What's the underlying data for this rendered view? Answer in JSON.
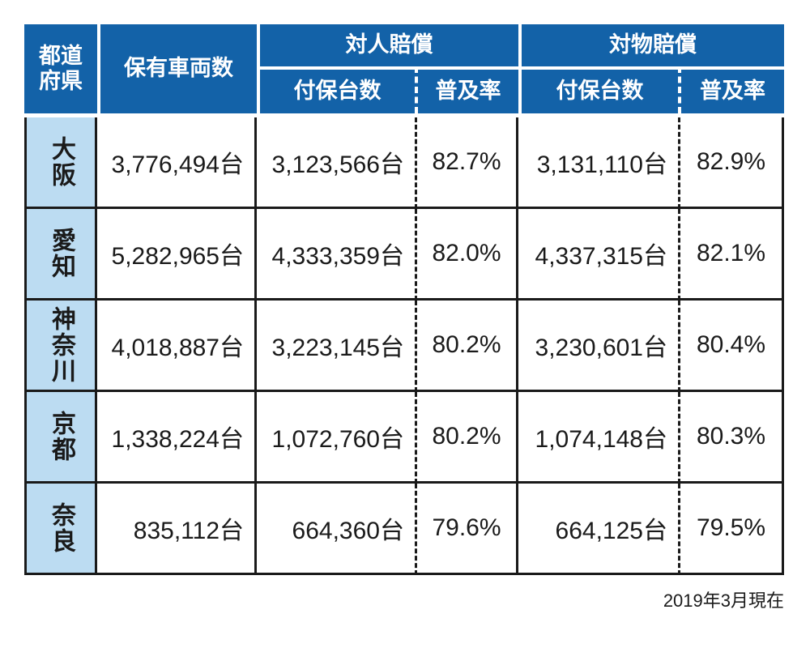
{
  "chart_data": {
    "type": "table",
    "header": {
      "prefecture": "都道\n府県",
      "owned": "保有車両数",
      "bi_group": "対人賠償",
      "pd_group": "対物賠償",
      "bi_insured": "付保台数",
      "bi_rate": "普及率",
      "pd_insured": "付保台数",
      "pd_rate": "普及率"
    },
    "rows": [
      {
        "prefecture": "大阪",
        "owned": "3,776,494台",
        "bi_insured": "3,123,566台",
        "bi_rate": "82.7%",
        "pd_insured": "3,131,110台",
        "pd_rate": "82.9%"
      },
      {
        "prefecture": "愛知",
        "owned": "5,282,965台",
        "bi_insured": "4,333,359台",
        "bi_rate": "82.0%",
        "pd_insured": "4,337,315台",
        "pd_rate": "82.1%"
      },
      {
        "prefecture": "神奈川",
        "owned": "4,018,887台",
        "bi_insured": "3,223,145台",
        "bi_rate": "80.2%",
        "pd_insured": "3,230,601台",
        "pd_rate": "80.4%"
      },
      {
        "prefecture": "京都",
        "owned": "1,338,224台",
        "bi_insured": "1,072,760台",
        "bi_rate": "80.2%",
        "pd_insured": "1,074,148台",
        "pd_rate": "80.3%"
      },
      {
        "prefecture": "奈良",
        "owned": "835,112台",
        "bi_insured": "664,360台",
        "bi_rate": "79.6%",
        "pd_insured": "664,125台",
        "pd_rate": "79.5%"
      }
    ],
    "footnote": "2019年3月現在",
    "colors": {
      "header_bg": "#1362a8",
      "prefecture_bg": "#bcdcf2",
      "border": "#1a1a1a"
    }
  }
}
